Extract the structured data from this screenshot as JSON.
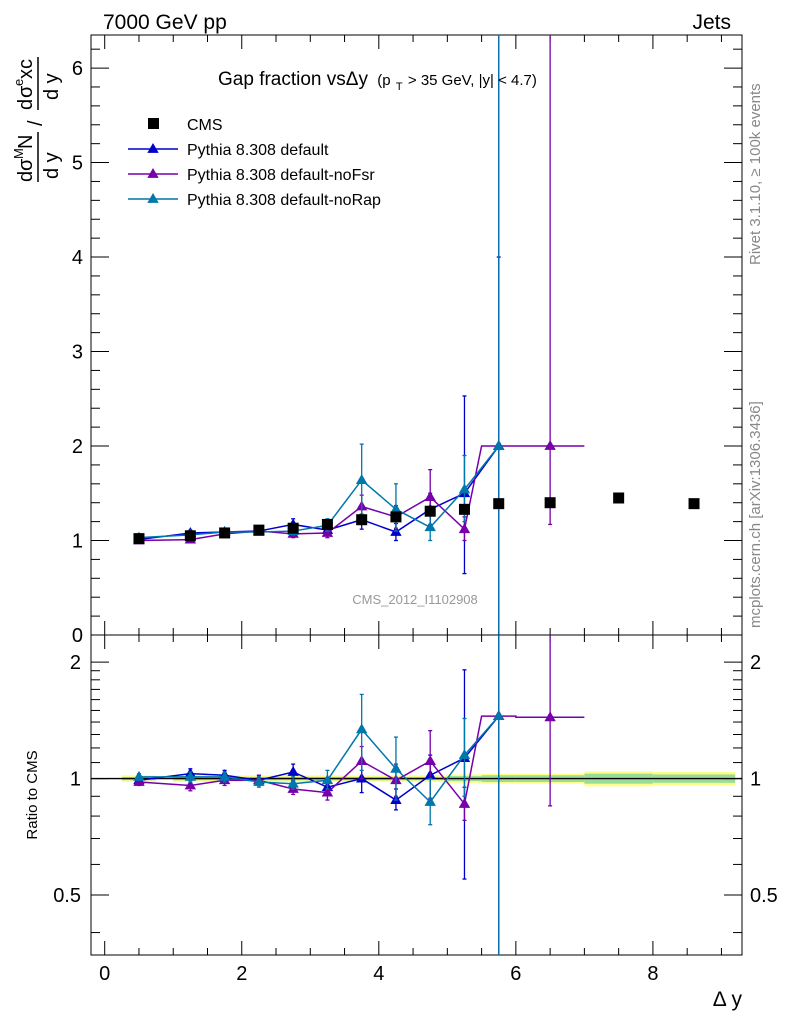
{
  "header": {
    "left": "7000 GeV pp",
    "right": "Jets"
  },
  "side_text": {
    "rivet": "Rivet 3.1.10, ≥ 100k events",
    "mcplots": "mcplots.cern.ch [arXiv:1306.3436]"
  },
  "watermark": "CMS_2012_I1102908",
  "colors": {
    "CMS": "#000000",
    "Pythia 8.308 default": "#0000cc",
    "Pythia 8.308 default-noFsr": "#7700aa",
    "Pythia 8.308 default-noRap": "#0077aa",
    "band_inner": "#99dd99",
    "band_outer": "#ffff88"
  },
  "chart_data": [
    {
      "type": "scatter",
      "title": "Gap fraction vsΔy (p_T > 35 GeV, |y| < 4.7)",
      "title_main": "Gap fraction vsΔy",
      "title_sub": "(p",
      "title_sub_T": "T",
      "title_sub_rest": " > 35 GeV, |y| < 4.7)",
      "xlabel": "Δ y",
      "ylabel": "dσ^M N / d y  /  dσ^e xc / d y",
      "xlim": [
        -0.2,
        9.3
      ],
      "ylim": [
        0,
        6.35
      ],
      "xticks": [
        "0",
        "2",
        "4",
        "6",
        "8"
      ],
      "yticks": [
        "0",
        "1",
        "2",
        "3",
        "4",
        "5",
        "6"
      ],
      "legend_position": "top-left",
      "series": [
        {
          "name": "CMS",
          "marker": "square",
          "points": [
            {
              "x": 0.5,
              "y": 1.02
            },
            {
              "x": 1.25,
              "y": 1.05
            },
            {
              "x": 1.75,
              "y": 1.08
            },
            {
              "x": 2.25,
              "y": 1.11
            },
            {
              "x": 2.75,
              "y": 1.13
            },
            {
              "x": 3.25,
              "y": 1.17
            },
            {
              "x": 3.75,
              "y": 1.22
            },
            {
              "x": 4.25,
              "y": 1.25
            },
            {
              "x": 4.75,
              "y": 1.31
            },
            {
              "x": 5.25,
              "y": 1.33
            },
            {
              "x": 5.75,
              "y": 1.39
            },
            {
              "x": 6.5,
              "y": 1.4
            },
            {
              "x": 7.5,
              "y": 1.45
            },
            {
              "x": 8.6,
              "y": 1.39
            }
          ]
        },
        {
          "name": "Pythia 8.308 default",
          "marker": "triangle",
          "points": [
            {
              "x": 0.5,
              "y": 1.01,
              "ylo": 0.99,
              "yhi": 1.03
            },
            {
              "x": 1.25,
              "y": 1.08,
              "ylo": 1.05,
              "yhi": 1.11
            },
            {
              "x": 1.75,
              "y": 1.09,
              "ylo": 1.06,
              "yhi": 1.12
            },
            {
              "x": 2.25,
              "y": 1.1,
              "ylo": 1.07,
              "yhi": 1.13
            },
            {
              "x": 2.75,
              "y": 1.17,
              "ylo": 1.12,
              "yhi": 1.23
            },
            {
              "x": 3.25,
              "y": 1.11,
              "ylo": 1.06,
              "yhi": 1.16
            },
            {
              "x": 3.75,
              "y": 1.22,
              "ylo": 1.12,
              "yhi": 1.33
            },
            {
              "x": 4.25,
              "y": 1.09,
              "ylo": 1.0,
              "yhi": 1.18
            },
            {
              "x": 4.75,
              "y": 1.33,
              "ylo": 1.15,
              "yhi": 1.5
            },
            {
              "x": 5.25,
              "y": 1.5,
              "ylo": 0.65,
              "yhi": 2.53
            },
            {
              "x": 5.75,
              "y": 2.0,
              "ylo": 0.0,
              "yhi": 4.0
            }
          ]
        },
        {
          "name": "Pythia 8.308 default-noFsr",
          "marker": "triangle",
          "points": [
            {
              "x": 0.5,
              "y": 1.0,
              "ylo": 0.98,
              "yhi": 1.02
            },
            {
              "x": 1.25,
              "y": 1.01,
              "ylo": 0.98,
              "yhi": 1.04
            },
            {
              "x": 1.75,
              "y": 1.07,
              "ylo": 1.04,
              "yhi": 1.1
            },
            {
              "x": 2.25,
              "y": 1.1,
              "ylo": 1.06,
              "yhi": 1.13
            },
            {
              "x": 2.75,
              "y": 1.07,
              "ylo": 1.03,
              "yhi": 1.11
            },
            {
              "x": 3.25,
              "y": 1.08,
              "ylo": 1.03,
              "yhi": 1.13
            },
            {
              "x": 3.75,
              "y": 1.36,
              "ylo": 1.22,
              "yhi": 1.48
            },
            {
              "x": 4.25,
              "y": 1.25,
              "ylo": 1.13,
              "yhi": 1.37
            },
            {
              "x": 4.75,
              "y": 1.46,
              "ylo": 1.17,
              "yhi": 1.75
            },
            {
              "x": 5.25,
              "y": 1.12,
              "ylo": 1.0,
              "yhi": 1.25
            },
            {
              "x": 5.75,
              "y": 2.0,
              "xlo": 5.5,
              "xhi": 6.0,
              "ylo": 0.0,
              "yhi": 6.35
            },
            {
              "x": 6.5,
              "y": 2.0,
              "xlo": 6.0,
              "xhi": 7.0,
              "ylo": 1.17,
              "yhi": 6.35
            }
          ]
        },
        {
          "name": "Pythia 8.308 default-noRap",
          "marker": "triangle",
          "points": [
            {
              "x": 0.5,
              "y": 1.03,
              "ylo": 1.01,
              "yhi": 1.05
            },
            {
              "x": 1.25,
              "y": 1.06,
              "ylo": 1.03,
              "yhi": 1.09
            },
            {
              "x": 1.75,
              "y": 1.09,
              "ylo": 1.06,
              "yhi": 1.12
            },
            {
              "x": 2.25,
              "y": 1.09,
              "ylo": 1.06,
              "yhi": 1.12
            },
            {
              "x": 2.75,
              "y": 1.1,
              "ylo": 1.06,
              "yhi": 1.14
            },
            {
              "x": 3.25,
              "y": 1.16,
              "ylo": 1.1,
              "yhi": 1.23
            },
            {
              "x": 3.75,
              "y": 1.64,
              "ylo": 1.28,
              "yhi": 2.02
            },
            {
              "x": 4.25,
              "y": 1.33,
              "ylo": 1.1,
              "yhi": 1.6
            },
            {
              "x": 4.75,
              "y": 1.14,
              "ylo": 1.0,
              "yhi": 1.31
            },
            {
              "x": 5.25,
              "y": 1.54,
              "ylo": 1.2,
              "yhi": 1.9
            },
            {
              "x": 5.75,
              "y": 2.0,
              "ylo": 0.0,
              "yhi": 6.35
            }
          ]
        }
      ]
    },
    {
      "type": "scatter",
      "ylabel": "Ratio to CMS",
      "xlabel": "Δ y",
      "xlim": [
        -0.2,
        9.3
      ],
      "ylim": [
        0.35,
        2.35
      ],
      "yscale": "log",
      "xticks": [
        "0",
        "2",
        "4",
        "6",
        "8"
      ],
      "yticks": [
        "0.5",
        "1",
        "2"
      ],
      "band": [
        {
          "xlo": 0.25,
          "xhi": 0.75,
          "inner": 0.01,
          "outer": 0.02
        },
        {
          "xlo": 1.0,
          "xhi": 1.5,
          "inner": 0.01,
          "outer": 0.02
        },
        {
          "xlo": 1.5,
          "xhi": 2.0,
          "inner": 0.01,
          "outer": 0.02
        },
        {
          "xlo": 2.0,
          "xhi": 2.5,
          "inner": 0.01,
          "outer": 0.02
        },
        {
          "xlo": 2.5,
          "xhi": 3.0,
          "inner": 0.01,
          "outer": 0.02
        },
        {
          "xlo": 3.0,
          "xhi": 3.5,
          "inner": 0.01,
          "outer": 0.02
        },
        {
          "xlo": 3.5,
          "xhi": 4.0,
          "inner": 0.01,
          "outer": 0.02
        },
        {
          "xlo": 4.0,
          "xhi": 4.5,
          "inner": 0.01,
          "outer": 0.02
        },
        {
          "xlo": 4.5,
          "xhi": 5.0,
          "inner": 0.01,
          "outer": 0.02
        },
        {
          "xlo": 5.0,
          "xhi": 5.5,
          "inner": 0.015,
          "outer": 0.025
        },
        {
          "xlo": 5.5,
          "xhi": 6.0,
          "inner": 0.02,
          "outer": 0.03
        },
        {
          "xlo": 6.0,
          "xhi": 7.0,
          "inner": 0.02,
          "outer": 0.03
        },
        {
          "xlo": 7.0,
          "xhi": 8.0,
          "inner": 0.03,
          "outer": 0.045
        },
        {
          "xlo": 8.0,
          "xhi": 9.2,
          "inner": 0.025,
          "outer": 0.04
        }
      ],
      "series": [
        {
          "name": "Pythia 8.308 default",
          "points": [
            {
              "x": 0.5,
              "y": 0.99,
              "ylo": 0.97,
              "yhi": 1.01
            },
            {
              "x": 1.25,
              "y": 1.03,
              "ylo": 1.0,
              "yhi": 1.06
            },
            {
              "x": 1.75,
              "y": 1.02,
              "ylo": 0.99,
              "yhi": 1.05
            },
            {
              "x": 2.25,
              "y": 0.99,
              "ylo": 0.96,
              "yhi": 1.02
            },
            {
              "x": 2.75,
              "y": 1.04,
              "ylo": 0.99,
              "yhi": 1.09
            },
            {
              "x": 3.25,
              "y": 0.95,
              "ylo": 0.91,
              "yhi": 0.99
            },
            {
              "x": 3.75,
              "y": 1.0,
              "ylo": 0.92,
              "yhi": 1.09
            },
            {
              "x": 4.25,
              "y": 0.88,
              "ylo": 0.83,
              "yhi": 0.94
            },
            {
              "x": 4.75,
              "y": 1.02,
              "ylo": 0.88,
              "yhi": 1.15
            },
            {
              "x": 5.25,
              "y": 1.13,
              "ylo": 0.55,
              "yhi": 1.91
            },
            {
              "x": 5.75,
              "y": 1.45,
              "ylo": 0.0,
              "yhi": 2.35
            }
          ]
        },
        {
          "name": "Pythia 8.308 default-noFsr",
          "points": [
            {
              "x": 0.5,
              "y": 0.98,
              "ylo": 0.96,
              "yhi": 1.0
            },
            {
              "x": 1.25,
              "y": 0.96,
              "ylo": 0.93,
              "yhi": 0.99
            },
            {
              "x": 1.75,
              "y": 0.99,
              "ylo": 0.96,
              "yhi": 1.02
            },
            {
              "x": 2.25,
              "y": 0.99,
              "ylo": 0.96,
              "yhi": 1.02
            },
            {
              "x": 2.75,
              "y": 0.94,
              "ylo": 0.91,
              "yhi": 0.98
            },
            {
              "x": 3.25,
              "y": 0.92,
              "ylo": 0.88,
              "yhi": 0.96
            },
            {
              "x": 3.75,
              "y": 1.11,
              "ylo": 1.0,
              "yhi": 1.21
            },
            {
              "x": 4.25,
              "y": 0.99,
              "ylo": 0.9,
              "yhi": 1.09
            },
            {
              "x": 4.75,
              "y": 1.11,
              "ylo": 0.89,
              "yhi": 1.33
            },
            {
              "x": 5.25,
              "y": 0.86,
              "ylo": 0.78,
              "yhi": 0.95
            },
            {
              "x": 5.75,
              "y": 1.45,
              "xlo": 5.5,
              "xhi": 6.0,
              "ylo": 0.0,
              "yhi": 2.35
            },
            {
              "x": 6.5,
              "y": 1.44,
              "xlo": 6.0,
              "xhi": 7.0,
              "ylo": 0.85,
              "yhi": 2.35
            }
          ]
        },
        {
          "name": "Pythia 8.308 default-noRap",
          "points": [
            {
              "x": 0.5,
              "y": 1.01,
              "ylo": 0.99,
              "yhi": 1.03
            },
            {
              "x": 1.25,
              "y": 1.01,
              "ylo": 0.98,
              "yhi": 1.04
            },
            {
              "x": 1.75,
              "y": 1.01,
              "ylo": 0.98,
              "yhi": 1.04
            },
            {
              "x": 2.25,
              "y": 0.98,
              "ylo": 0.95,
              "yhi": 1.01
            },
            {
              "x": 2.75,
              "y": 0.97,
              "ylo": 0.94,
              "yhi": 1.01
            },
            {
              "x": 3.25,
              "y": 0.99,
              "ylo": 0.94,
              "yhi": 1.05
            },
            {
              "x": 3.75,
              "y": 1.34,
              "ylo": 1.05,
              "yhi": 1.65
            },
            {
              "x": 4.25,
              "y": 1.06,
              "ylo": 0.88,
              "yhi": 1.28
            },
            {
              "x": 4.75,
              "y": 0.87,
              "ylo": 0.76,
              "yhi": 1.0
            },
            {
              "x": 5.25,
              "y": 1.15,
              "ylo": 0.9,
              "yhi": 1.43
            },
            {
              "x": 5.75,
              "y": 1.45,
              "ylo": 0.0,
              "yhi": 2.35
            }
          ]
        }
      ]
    }
  ]
}
